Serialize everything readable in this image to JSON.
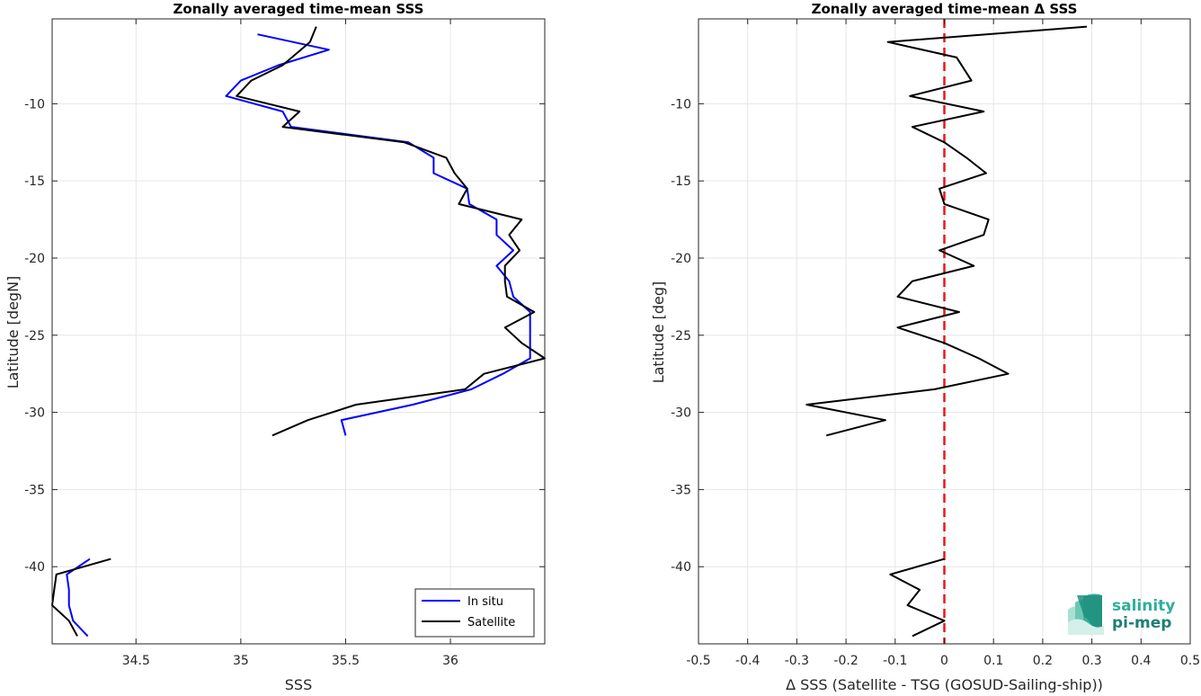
{
  "chart_data": [
    {
      "type": "line",
      "title": "Zonally averaged time-mean SSS",
      "xlabel": "SSS",
      "ylabel": "Latitude [degN]",
      "xlim": [
        34.1,
        36.45
      ],
      "ylim": [
        -45,
        -4.5
      ],
      "grid": true,
      "legend_position": "bottom-right",
      "x_ticks": [
        34.5,
        35,
        35.5,
        36
      ],
      "x_tick_labels": [
        "34.5",
        "35",
        "35.5",
        "36"
      ],
      "y_ticks": [
        -40,
        -35,
        -30,
        -25,
        -20,
        -15,
        -10
      ],
      "y_tick_labels": [
        "-40",
        "-35",
        "-30",
        "-25",
        "-20",
        "-15",
        "-10"
      ],
      "series": [
        {
          "name": "In situ",
          "color": "#0000ff",
          "segments": [
            [
              [
                35.08,
                -5.5
              ],
              [
                35.42,
                -6.5
              ],
              [
                35.18,
                -7.5
              ],
              [
                35.0,
                -8.5
              ],
              [
                34.93,
                -9.5
              ],
              [
                35.2,
                -10.5
              ],
              [
                35.24,
                -11.5
              ],
              [
                35.8,
                -12.5
              ],
              [
                35.92,
                -13.5
              ],
              [
                35.92,
                -14.5
              ],
              [
                36.08,
                -15.5
              ],
              [
                36.09,
                -16.5
              ],
              [
                36.22,
                -17.5
              ],
              [
                36.22,
                -18.5
              ],
              [
                36.3,
                -19.5
              ],
              [
                36.22,
                -20.5
              ],
              [
                36.28,
                -21.5
              ],
              [
                36.3,
                -22.5
              ],
              [
                36.38,
                -23.5
              ],
              [
                36.38,
                -24.5
              ],
              [
                36.38,
                -25.5
              ],
              [
                36.38,
                -26.5
              ],
              [
                36.25,
                -27.5
              ],
              [
                36.1,
                -28.5
              ],
              [
                35.82,
                -29.5
              ],
              [
                35.48,
                -30.5
              ],
              [
                35.5,
                -31.5
              ]
            ],
            [
              [
                34.28,
                -39.5
              ],
              [
                34.17,
                -40.5
              ],
              [
                34.18,
                -41.5
              ],
              [
                34.18,
                -42.5
              ],
              [
                34.2,
                -43.5
              ],
              [
                34.27,
                -44.5
              ]
            ]
          ]
        },
        {
          "name": "Satellite",
          "color": "#000000",
          "segments": [
            [
              [
                35.36,
                -5.0
              ],
              [
                35.33,
                -6.0
              ],
              [
                35.2,
                -7.5
              ],
              [
                35.05,
                -8.5
              ],
              [
                34.98,
                -9.5
              ],
              [
                35.28,
                -10.5
              ],
              [
                35.2,
                -11.5
              ],
              [
                35.78,
                -12.5
              ],
              [
                35.98,
                -13.5
              ],
              [
                36.02,
                -14.5
              ],
              [
                36.08,
                -15.5
              ],
              [
                36.04,
                -16.5
              ],
              [
                36.34,
                -17.5
              ],
              [
                36.28,
                -18.5
              ],
              [
                36.33,
                -19.5
              ],
              [
                36.26,
                -20.5
              ],
              [
                36.26,
                -21.5
              ],
              [
                36.27,
                -22.5
              ],
              [
                36.4,
                -23.5
              ],
              [
                36.26,
                -24.5
              ],
              [
                36.34,
                -25.5
              ],
              [
                36.45,
                -26.5
              ],
              [
                36.16,
                -27.5
              ],
              [
                36.07,
                -28.5
              ],
              [
                35.55,
                -29.5
              ],
              [
                35.32,
                -30.5
              ],
              [
                35.15,
                -31.5
              ]
            ],
            [
              [
                34.38,
                -39.5
              ],
              [
                34.12,
                -40.5
              ],
              [
                34.11,
                -41.5
              ],
              [
                34.1,
                -42.5
              ],
              [
                34.18,
                -43.5
              ],
              [
                34.22,
                -44.5
              ]
            ]
          ]
        }
      ]
    },
    {
      "type": "line",
      "title": "Zonally averaged time-mean Δ SSS",
      "xlabel": "Δ SSS (Satellite - TSG (GOSUD-Sailing-ship))",
      "ylabel": "Latitude [deg]",
      "xlim": [
        -0.5,
        0.5
      ],
      "ylim": [
        -45,
        -4.5
      ],
      "grid": true,
      "x_ticks": [
        -0.5,
        -0.4,
        -0.3,
        -0.2,
        -0.1,
        0,
        0.1,
        0.2,
        0.3,
        0.4,
        0.5
      ],
      "x_tick_labels": [
        "-0.5",
        "-0.4",
        "-0.3",
        "-0.2",
        "-0.1",
        "0",
        "0.1",
        "0.2",
        "0.3",
        "0.4",
        "0.5"
      ],
      "y_ticks": [
        -40,
        -35,
        -30,
        -25,
        -20,
        -15,
        -10
      ],
      "y_tick_labels": [
        "-40",
        "-35",
        "-30",
        "-25",
        "-20",
        "-15",
        "-10"
      ],
      "reference_line": {
        "x": 0,
        "color": "#e41a1c",
        "style": "dashed"
      },
      "series": [
        {
          "color": "#000000",
          "segments": [
            [
              [
                0.29,
                -5.0
              ],
              [
                -0.115,
                -6.0
              ],
              [
                0.025,
                -7.0
              ],
              [
                0.055,
                -8.5
              ],
              [
                -0.07,
                -9.5
              ],
              [
                0.08,
                -10.5
              ],
              [
                -0.065,
                -11.5
              ],
              [
                0.0,
                -12.5
              ],
              [
                0.045,
                -13.5
              ],
              [
                0.085,
                -14.5
              ],
              [
                -0.01,
                -15.5
              ],
              [
                0.0,
                -16.5
              ],
              [
                0.09,
                -17.5
              ],
              [
                0.08,
                -18.5
              ],
              [
                -0.01,
                -19.5
              ],
              [
                0.06,
                -20.5
              ],
              [
                -0.065,
                -21.5
              ],
              [
                -0.095,
                -22.5
              ],
              [
                0.03,
                -23.5
              ],
              [
                -0.095,
                -24.5
              ],
              [
                0.0,
                -25.5
              ],
              [
                0.07,
                -26.5
              ],
              [
                0.13,
                -27.5
              ],
              [
                -0.02,
                -28.5
              ],
              [
                -0.28,
                -29.5
              ],
              [
                -0.12,
                -30.5
              ],
              [
                -0.24,
                -31.5
              ]
            ],
            [
              [
                0.0,
                -39.5
              ],
              [
                -0.11,
                -40.5
              ],
              [
                -0.05,
                -41.5
              ],
              [
                -0.075,
                -42.5
              ],
              [
                0.0,
                -43.5
              ],
              [
                -0.065,
                -44.5
              ]
            ]
          ]
        }
      ]
    }
  ],
  "legend": {
    "items": [
      "In situ",
      "Satellite"
    ]
  },
  "logo": {
    "line1": "salinity",
    "line2": "pi-mep"
  }
}
